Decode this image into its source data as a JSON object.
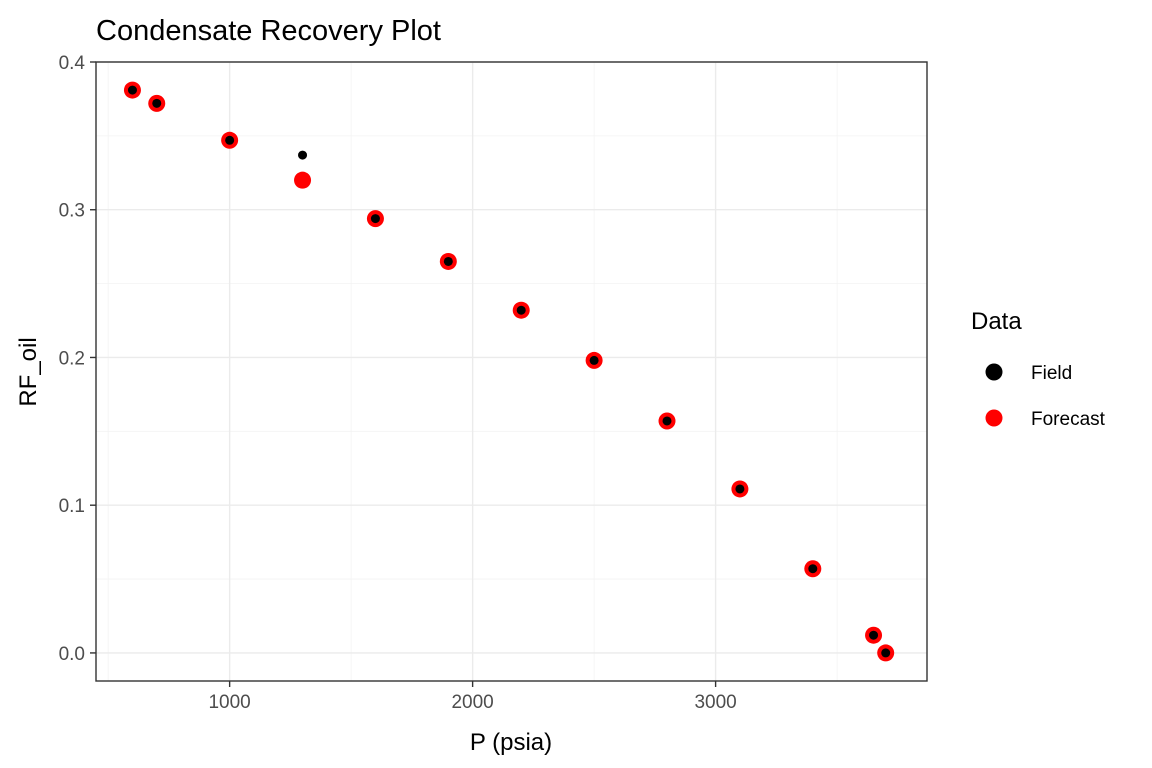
{
  "chart_data": {
    "type": "scatter",
    "title": "Condensate Recovery Plot",
    "xlabel": "P (psia)",
    "ylabel": "RF_oil",
    "xlim": [
      450,
      3870
    ],
    "ylim": [
      -0.019,
      0.4
    ],
    "x_ticks": [
      1000,
      2000,
      3000
    ],
    "x_tick_labels": [
      "1000",
      "2000",
      "3000"
    ],
    "y_ticks": [
      0.0,
      0.1,
      0.2,
      0.3,
      0.4
    ],
    "y_tick_labels": [
      "0.0",
      "0.1",
      "0.2",
      "0.3",
      "0.4"
    ],
    "grid": true,
    "legend": {
      "title": "Data",
      "position": "right"
    },
    "series": [
      {
        "name": "Field",
        "color": "#000000",
        "points": [
          {
            "x": 600,
            "y": 0.381
          },
          {
            "x": 700,
            "y": 0.372
          },
          {
            "x": 1000,
            "y": 0.347
          },
          {
            "x": 1300,
            "y": 0.337
          },
          {
            "x": 1600,
            "y": 0.294
          },
          {
            "x": 1900,
            "y": 0.265
          },
          {
            "x": 2200,
            "y": 0.232
          },
          {
            "x": 2500,
            "y": 0.198
          },
          {
            "x": 2800,
            "y": 0.157
          },
          {
            "x": 3100,
            "y": 0.111
          },
          {
            "x": 3400,
            "y": 0.057
          },
          {
            "x": 3650,
            "y": 0.012
          },
          {
            "x": 3700,
            "y": 0.0
          }
        ]
      },
      {
        "name": "Forecast",
        "color": "#ff0000",
        "points": [
          {
            "x": 600,
            "y": 0.381
          },
          {
            "x": 700,
            "y": 0.372
          },
          {
            "x": 1000,
            "y": 0.347
          },
          {
            "x": 1300,
            "y": 0.32
          },
          {
            "x": 1600,
            "y": 0.294
          },
          {
            "x": 1900,
            "y": 0.265
          },
          {
            "x": 2200,
            "y": 0.232
          },
          {
            "x": 2500,
            "y": 0.198
          },
          {
            "x": 2800,
            "y": 0.157
          },
          {
            "x": 3100,
            "y": 0.111
          },
          {
            "x": 3400,
            "y": 0.057
          },
          {
            "x": 3650,
            "y": 0.012
          },
          {
            "x": 3700,
            "y": 0.0
          }
        ]
      }
    ]
  }
}
